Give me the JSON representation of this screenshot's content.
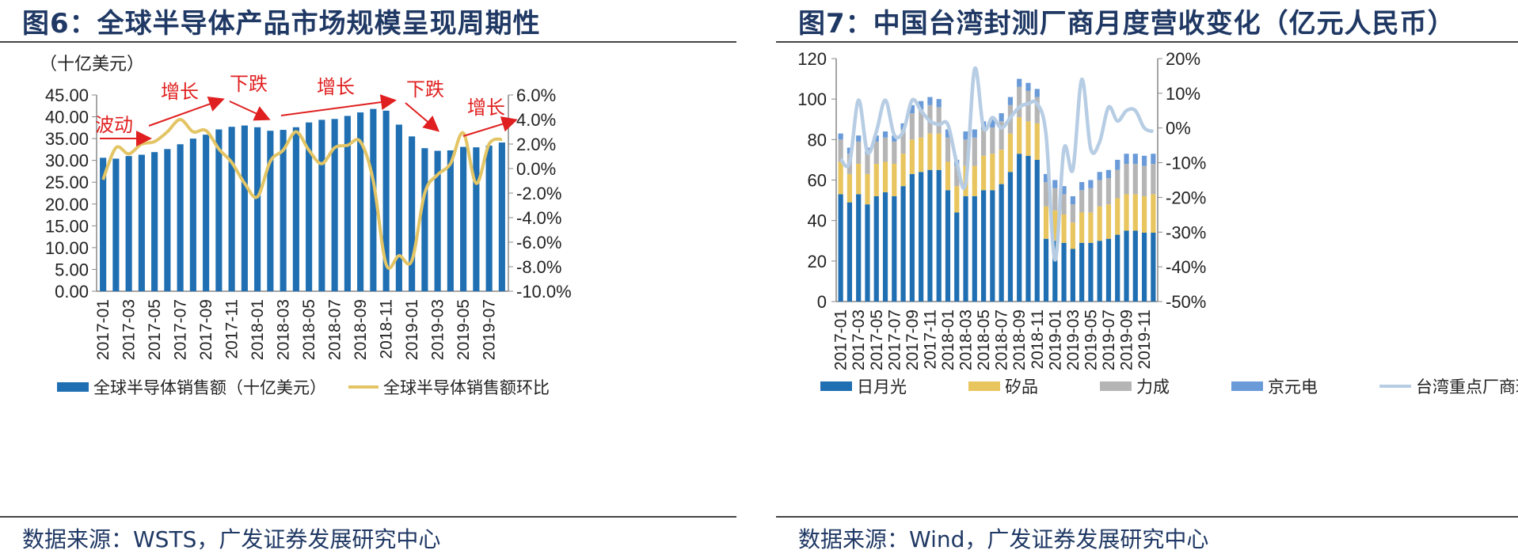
{
  "left": {
    "title": "图6：全球半导体产品市场规模呈现周期性",
    "source": "数据来源：WSTS，广发证券发展研究中心",
    "chart_data": {
      "type": "bar",
      "unit_label": "（十亿美元）",
      "categories": [
        "2017-01",
        "2017-02",
        "2017-03",
        "2017-04",
        "2017-05",
        "2017-06",
        "2017-07",
        "2017-08",
        "2017-09",
        "2017-10",
        "2017-11",
        "2017-12",
        "2018-01",
        "2018-02",
        "2018-03",
        "2018-04",
        "2018-05",
        "2018-06",
        "2018-07",
        "2018-08",
        "2018-09",
        "2018-10",
        "2018-11",
        "2018-12",
        "2019-01",
        "2019-02",
        "2019-03",
        "2019-04",
        "2019-05",
        "2019-06",
        "2019-07",
        "2019-08"
      ],
      "x_tick_labels": [
        "2017-01",
        "2017-03",
        "2017-05",
        "2017-07",
        "2017-09",
        "2017-11",
        "2018-01",
        "2018-03",
        "2018-05",
        "2018-07",
        "2018-09",
        "2018-11",
        "2019-01",
        "2019-03",
        "2019-05",
        "2019-07"
      ],
      "series": [
        {
          "name": "全球半导体销售额（十亿美元）",
          "type": "bar",
          "axis": "left",
          "color": "#1f6fb2",
          "values": [
            30.6,
            30.4,
            31.0,
            31.3,
            31.9,
            32.6,
            33.7,
            35.0,
            35.9,
            37.1,
            37.7,
            38.0,
            37.6,
            36.8,
            37.0,
            37.6,
            38.7,
            39.3,
            39.5,
            40.2,
            41.0,
            41.8,
            41.4,
            38.2,
            35.5,
            32.8,
            32.2,
            32.3,
            33.1,
            33.0,
            33.4,
            34.1
          ]
        },
        {
          "name": "全球半导体销售额环比",
          "type": "line",
          "axis": "right",
          "color": "#e3c565",
          "values": [
            -0.9,
            1.7,
            1.2,
            2.0,
            2.2,
            3.0,
            4.0,
            3.0,
            3.1,
            1.6,
            0.5,
            -1.2,
            -2.3,
            0.6,
            1.5,
            3.0,
            1.5,
            0.4,
            1.7,
            1.9,
            2.2,
            -1.0,
            -7.8,
            -7.1,
            -7.5,
            -2.0,
            -0.5,
            0.4,
            2.9,
            -1.2,
            2.0,
            2.4
          ]
        }
      ],
      "y_left": {
        "min": 0,
        "max": 45,
        "ticks": [
          "0.00",
          "5.00",
          "10.00",
          "15.00",
          "20.00",
          "25.00",
          "30.00",
          "35.00",
          "40.00",
          "45.00"
        ]
      },
      "y_right": {
        "min": -10,
        "max": 6,
        "ticks": [
          "-10.0%",
          "-8.0%",
          "-6.0%",
          "-4.0%",
          "-2.0%",
          "0.0%",
          "2.0%",
          "4.0%",
          "6.0%"
        ]
      },
      "annotations": [
        {
          "text": "波动",
          "color": "#e02020"
        },
        {
          "text": "增长",
          "color": "#e02020"
        },
        {
          "text": "下跌",
          "color": "#e02020"
        },
        {
          "text": "增长",
          "color": "#e02020"
        },
        {
          "text": "下跌",
          "color": "#e02020"
        },
        {
          "text": "增长",
          "color": "#e02020"
        }
      ]
    }
  },
  "right": {
    "title": "图7：中国台湾封测厂商月度营收变化（亿元人民币）",
    "source": "数据来源：Wind，广发证券发展研究中心",
    "chart_data": {
      "type": "bar",
      "stacked": true,
      "categories": [
        "2017-01",
        "2017-02",
        "2017-03",
        "2017-04",
        "2017-05",
        "2017-06",
        "2017-07",
        "2017-08",
        "2017-09",
        "2017-10",
        "2017-11",
        "2017-12",
        "2018-01",
        "2018-02",
        "2018-03",
        "2018-04",
        "2018-05",
        "2018-06",
        "2018-07",
        "2018-08",
        "2018-09",
        "2018-10",
        "2018-11",
        "2018-12",
        "2019-01",
        "2019-02",
        "2019-03",
        "2019-04",
        "2019-05",
        "2019-06",
        "2019-07",
        "2019-08",
        "2019-09",
        "2019-10",
        "2019-11",
        "2019-12"
      ],
      "x_tick_labels": [
        "2017-01",
        "2017-03",
        "2017-05",
        "2017-07",
        "2017-09",
        "2017-11",
        "2018-01",
        "2018-03",
        "2018-05",
        "2018-07",
        "2018-09",
        "2018-11",
        "2019-01",
        "2019-03",
        "2019-05",
        "2019-07",
        "2019-09",
        "2019-11"
      ],
      "series": [
        {
          "name": "日月光",
          "type": "bar",
          "axis": "left",
          "color": "#1f6fb2",
          "values": [
            53,
            49,
            53,
            48,
            52,
            54,
            52,
            57,
            63,
            64,
            65,
            65,
            55,
            44,
            52,
            52,
            55,
            55,
            58,
            64,
            73,
            72,
            70,
            31,
            30,
            29,
            26,
            29,
            29,
            30,
            31,
            33,
            35,
            35,
            34,
            34
          ]
        },
        {
          "name": "矽品",
          "type": "bar",
          "axis": "left",
          "color": "#e8c55e",
          "values": [
            16,
            14,
            15,
            15,
            16,
            15,
            16,
            16,
            17,
            17,
            18,
            18,
            14,
            13,
            15,
            15,
            17,
            18,
            17,
            19,
            18,
            17,
            18,
            16,
            15,
            14,
            13,
            15,
            15,
            17,
            17,
            18,
            18,
            18,
            18,
            19
          ]
        },
        {
          "name": "力成",
          "type": "bar",
          "axis": "left",
          "color": "#b5b5b5",
          "values": [
            11,
            10,
            11,
            10,
            11,
            12,
            11,
            12,
            13,
            14,
            14,
            13,
            12,
            10,
            13,
            14,
            13,
            13,
            14,
            14,
            15,
            15,
            13,
            12,
            11,
            10,
            9,
            11,
            12,
            13,
            13,
            14,
            15,
            15,
            15,
            15
          ]
        },
        {
          "name": "京元电",
          "type": "bar",
          "axis": "left",
          "color": "#6a9bd8",
          "values": [
            3,
            3,
            3,
            3,
            3,
            3,
            3,
            3,
            4,
            4,
            4,
            4,
            4,
            3,
            4,
            4,
            4,
            4,
            4,
            4,
            4,
            4,
            4,
            4,
            4,
            4,
            4,
            4,
            4,
            4,
            4,
            5,
            5,
            5,
            5,
            5
          ]
        },
        {
          "name": "台湾重点厂商环比",
          "type": "line",
          "axis": "right",
          "color": "#b7cde4",
          "values": [
            -9,
            -10,
            8,
            -7,
            -1,
            8,
            -2,
            -1,
            8,
            5,
            2,
            1,
            1,
            -10,
            -16,
            17,
            0,
            3,
            0,
            3,
            6,
            7,
            7,
            -2,
            -38,
            -6,
            -12,
            14,
            -6,
            -4,
            6,
            2,
            5,
            5,
            0,
            -1
          ]
        }
      ],
      "y_left": {
        "min": 0,
        "max": 120,
        "ticks": [
          "0",
          "20",
          "40",
          "60",
          "80",
          "100",
          "120"
        ]
      },
      "y_right": {
        "min": -50,
        "max": 20,
        "ticks": [
          "-50%",
          "-40%",
          "-30%",
          "-20%",
          "-10%",
          "0%",
          "10%",
          "20%"
        ]
      }
    }
  }
}
